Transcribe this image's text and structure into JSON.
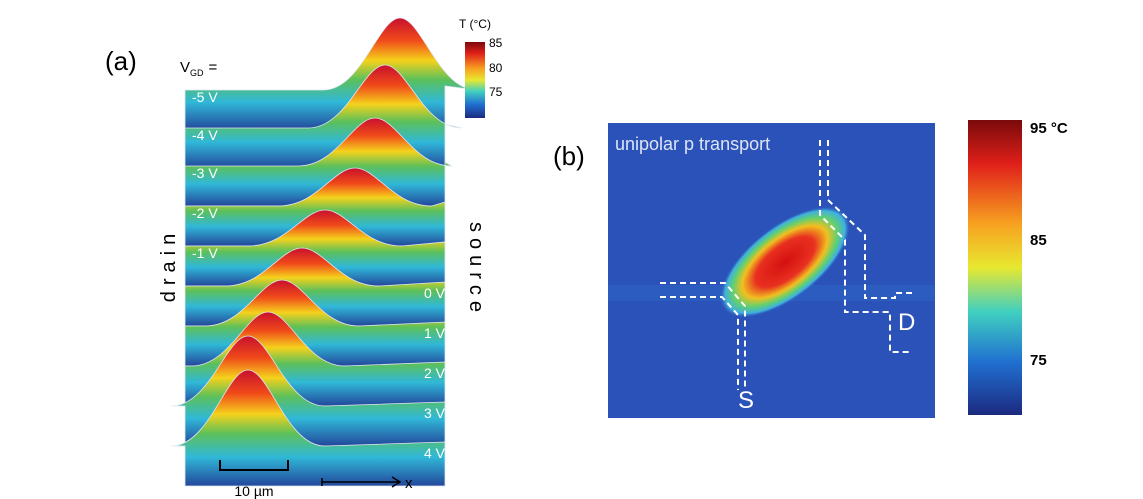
{
  "panel_a": {
    "label": "(a)",
    "vgd_main": "V",
    "vgd_sub": "GD",
    "vgd_eq": "=",
    "voltages": [
      "-5 V",
      "-4 V",
      "-3 V",
      "-2 V",
      "-1 V",
      "0 V",
      "1 V",
      "2 V",
      "3 V",
      "4 V"
    ],
    "drain": "drain",
    "source": "source",
    "colorbar": {
      "title": "T (°C)",
      "ticks": [
        "85",
        "80",
        "75"
      ]
    },
    "scale_bar": "10 µm",
    "x_axis": "x"
  },
  "panel_b": {
    "label": "(b)",
    "title": "unipolar p transport",
    "source": "S",
    "drain": "D",
    "colorbar": {
      "ticks": [
        "95 °C",
        "85",
        "75"
      ]
    }
  }
}
